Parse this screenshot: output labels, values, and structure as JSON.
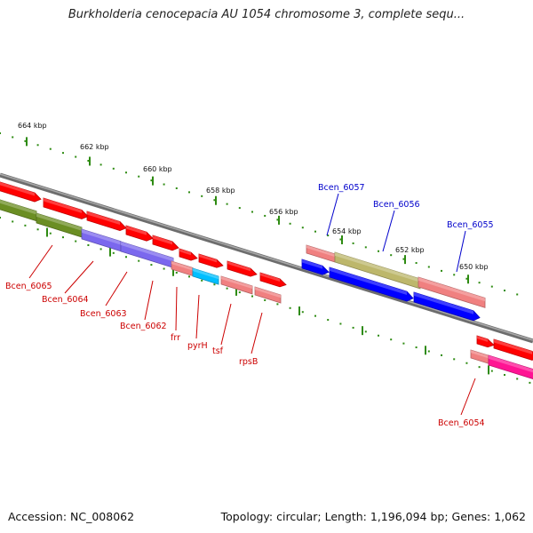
{
  "title": "Burkholderia cenocepacia AU 1054 chromosome 3, complete sequ...",
  "footer": {
    "accession": "Accession: NC_008062",
    "summary": "Topology: circular; Length: 1,196,094 bp; Genes: 1,062"
  },
  "colors": {
    "backbone": "#808080",
    "tick": "#2e8b12",
    "label_forward": "#0000cc",
    "label_reverse": "#cc0000",
    "red": "#ff0000",
    "salmon": "#f08080",
    "olive": "#6b8e23",
    "khaki": "#bdb76b",
    "slate": "#7b68ee",
    "cyan": "#00bfff",
    "blue": "#0000ff",
    "pink": "#ff1493"
  },
  "ruler": {
    "labels": [
      "664 kbp",
      "662 kbp",
      "660 kbp",
      "658 kbp",
      "656 kbp",
      "654 kbp",
      "652 kbp",
      "650 kbp"
    ]
  },
  "genes": [
    {
      "label": "Bcen_6065",
      "color": "red"
    },
    {
      "label": "Bcen_6064",
      "color": "olive"
    },
    {
      "label": "Bcen_6063",
      "color": "slate"
    },
    {
      "label": "Bcen_6062",
      "color": "red"
    },
    {
      "label": "frr",
      "color": "salmon"
    },
    {
      "label": "pyrH",
      "color": "cyan"
    },
    {
      "label": "tsf",
      "color": "salmon"
    },
    {
      "label": "rpsB",
      "color": "salmon"
    },
    {
      "label": "Bcen_6057",
      "color": "blue"
    },
    {
      "label": "Bcen_6056",
      "color": "khaki"
    },
    {
      "label": "Bcen_6055",
      "color": "salmon"
    },
    {
      "label": "Bcen_6054",
      "color": "salmon"
    }
  ]
}
